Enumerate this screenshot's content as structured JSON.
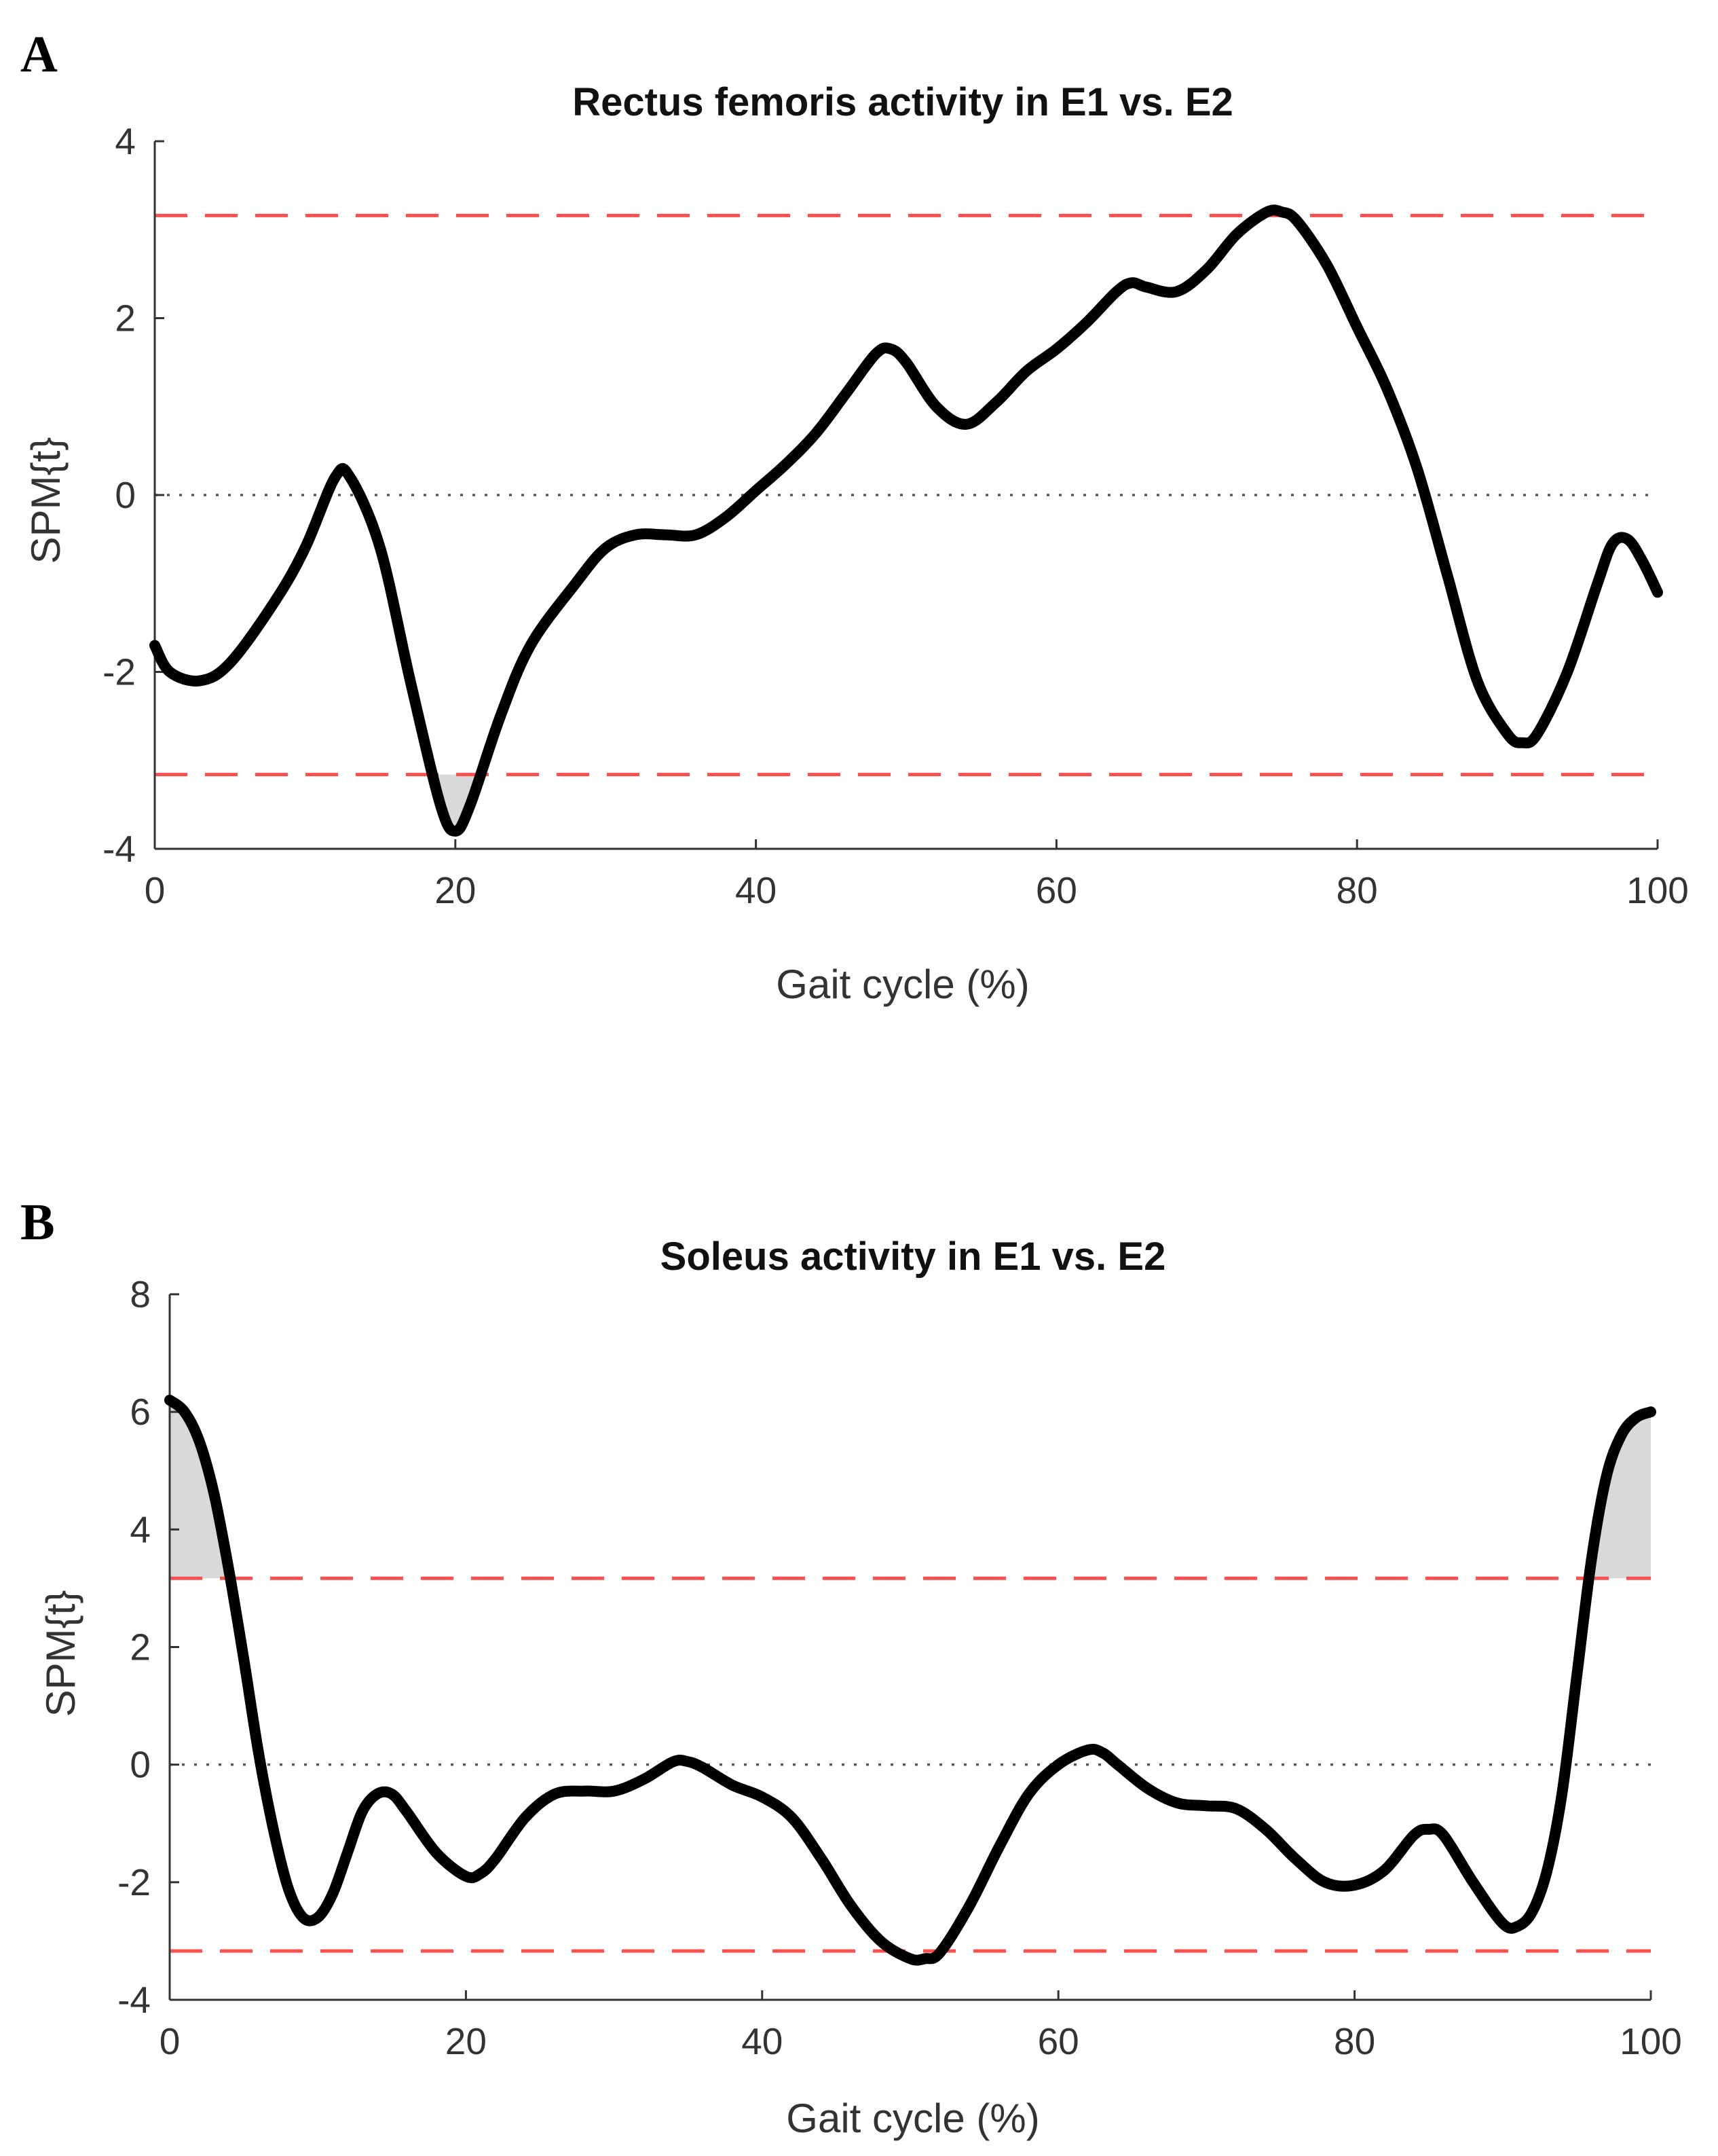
{
  "figure": {
    "panels": [
      {
        "label": "A",
        "title": "Rectus femoris activity in E1 vs. E2",
        "xlabel": "Gait cycle (%)",
        "ylabel": "SPM{t}"
      },
      {
        "label": "B",
        "title": "Soleus activity in E1 vs. E2",
        "xlabel": "Gait cycle (%)",
        "ylabel": "SPM{t}"
      }
    ]
  },
  "colors": {
    "curve": "#000000",
    "threshold": "#ff5050",
    "zero_line": "#555555",
    "cluster_fill": "#d9d9d9"
  },
  "chart_data": [
    {
      "type": "line",
      "title": "Rectus femoris activity in E1 vs. E2",
      "xlabel": "Gait cycle (%)",
      "ylabel": "SPM{t}",
      "xlim": [
        0,
        100
      ],
      "ylim": [
        -4,
        4
      ],
      "xticks": [
        "0",
        "20",
        "40",
        "60",
        "80",
        "100"
      ],
      "yticks": [
        "-4",
        "-2",
        "0",
        "2",
        "4"
      ],
      "threshold": 3.16,
      "grid": false,
      "series": [
        {
          "name": "SPM{t}",
          "x": [
            0,
            1,
            3,
            5,
            8,
            10,
            12,
            13,
            15,
            17,
            19,
            20,
            21,
            23,
            25,
            28,
            30,
            32,
            34,
            36,
            38,
            40,
            42,
            44,
            46,
            48,
            49,
            50,
            52,
            54,
            56,
            58,
            60,
            62,
            64,
            65,
            66,
            68,
            70,
            72,
            74,
            75,
            76,
            78,
            80,
            82,
            84,
            86,
            88,
            90,
            91,
            92,
            94,
            96,
            97,
            98,
            99,
            100
          ],
          "y": [
            -1.7,
            -2.0,
            -2.1,
            -1.9,
            -1.2,
            -0.6,
            0.2,
            0.2,
            -0.6,
            -2.1,
            -3.5,
            -3.8,
            -3.5,
            -2.5,
            -1.7,
            -1.0,
            -0.6,
            -0.45,
            -0.45,
            -0.45,
            -0.25,
            0.05,
            0.35,
            0.7,
            1.15,
            1.6,
            1.65,
            1.5,
            1.0,
            0.8,
            1.05,
            1.4,
            1.65,
            1.95,
            2.3,
            2.4,
            2.35,
            2.3,
            2.55,
            2.95,
            3.2,
            3.2,
            3.1,
            2.6,
            1.9,
            1.2,
            0.3,
            -0.9,
            -2.1,
            -2.7,
            -2.8,
            -2.7,
            -2.0,
            -1.0,
            -0.55,
            -0.5,
            -0.75,
            -1.1
          ]
        }
      ],
      "clusters": [
        {
          "x": [
            18.5,
            21.5
          ],
          "side": "below"
        }
      ]
    },
    {
      "type": "line",
      "title": "Soleus activity in E1 vs. E2",
      "xlabel": "Gait cycle (%)",
      "ylabel": "SPM{t}",
      "xlim": [
        0,
        100
      ],
      "ylim": [
        -4,
        8
      ],
      "xticks": [
        "0",
        "20",
        "40",
        "60",
        "80",
        "100"
      ],
      "yticks": [
        "-4",
        "-2",
        "0",
        "2",
        "4",
        "6",
        "8"
      ],
      "threshold": 3.17,
      "grid": false,
      "series": [
        {
          "name": "SPM{t}",
          "x": [
            0,
            1,
            2,
            3,
            4,
            5,
            6,
            7,
            8,
            9,
            10,
            11,
            12,
            13,
            14,
            15,
            16,
            18,
            20,
            21,
            22,
            24,
            26,
            28,
            30,
            32,
            34,
            35,
            36,
            38,
            40,
            42,
            44,
            46,
            48,
            50,
            51,
            52,
            54,
            56,
            58,
            60,
            62,
            63,
            64,
            66,
            68,
            70,
            72,
            74,
            76,
            78,
            80,
            82,
            84,
            85,
            86,
            88,
            90,
            91,
            92,
            93,
            94,
            95,
            96,
            97,
            98,
            99,
            100
          ],
          "y": [
            6.2,
            6.0,
            5.5,
            4.6,
            3.3,
            1.8,
            0.2,
            -1.1,
            -2.1,
            -2.6,
            -2.6,
            -2.2,
            -1.5,
            -0.8,
            -0.5,
            -0.5,
            -0.8,
            -1.5,
            -1.9,
            -1.85,
            -1.6,
            -0.9,
            -0.5,
            -0.45,
            -0.45,
            -0.25,
            0.05,
            0.05,
            -0.05,
            -0.35,
            -0.55,
            -0.9,
            -1.6,
            -2.4,
            -3.0,
            -3.3,
            -3.3,
            -3.2,
            -2.4,
            -1.4,
            -0.5,
            0.0,
            0.25,
            0.2,
            0.0,
            -0.4,
            -0.65,
            -0.7,
            -0.75,
            -1.1,
            -1.6,
            -2.0,
            -2.05,
            -1.8,
            -1.2,
            -1.1,
            -1.2,
            -2.0,
            -2.7,
            -2.75,
            -2.5,
            -1.8,
            -0.5,
            1.5,
            3.5,
            4.9,
            5.6,
            5.9,
            6.0
          ]
        }
      ],
      "clusters": [
        {
          "x": [
            0,
            4.2
          ],
          "side": "above"
        },
        {
          "x": [
            95.8,
            100
          ],
          "side": "above"
        }
      ]
    }
  ]
}
